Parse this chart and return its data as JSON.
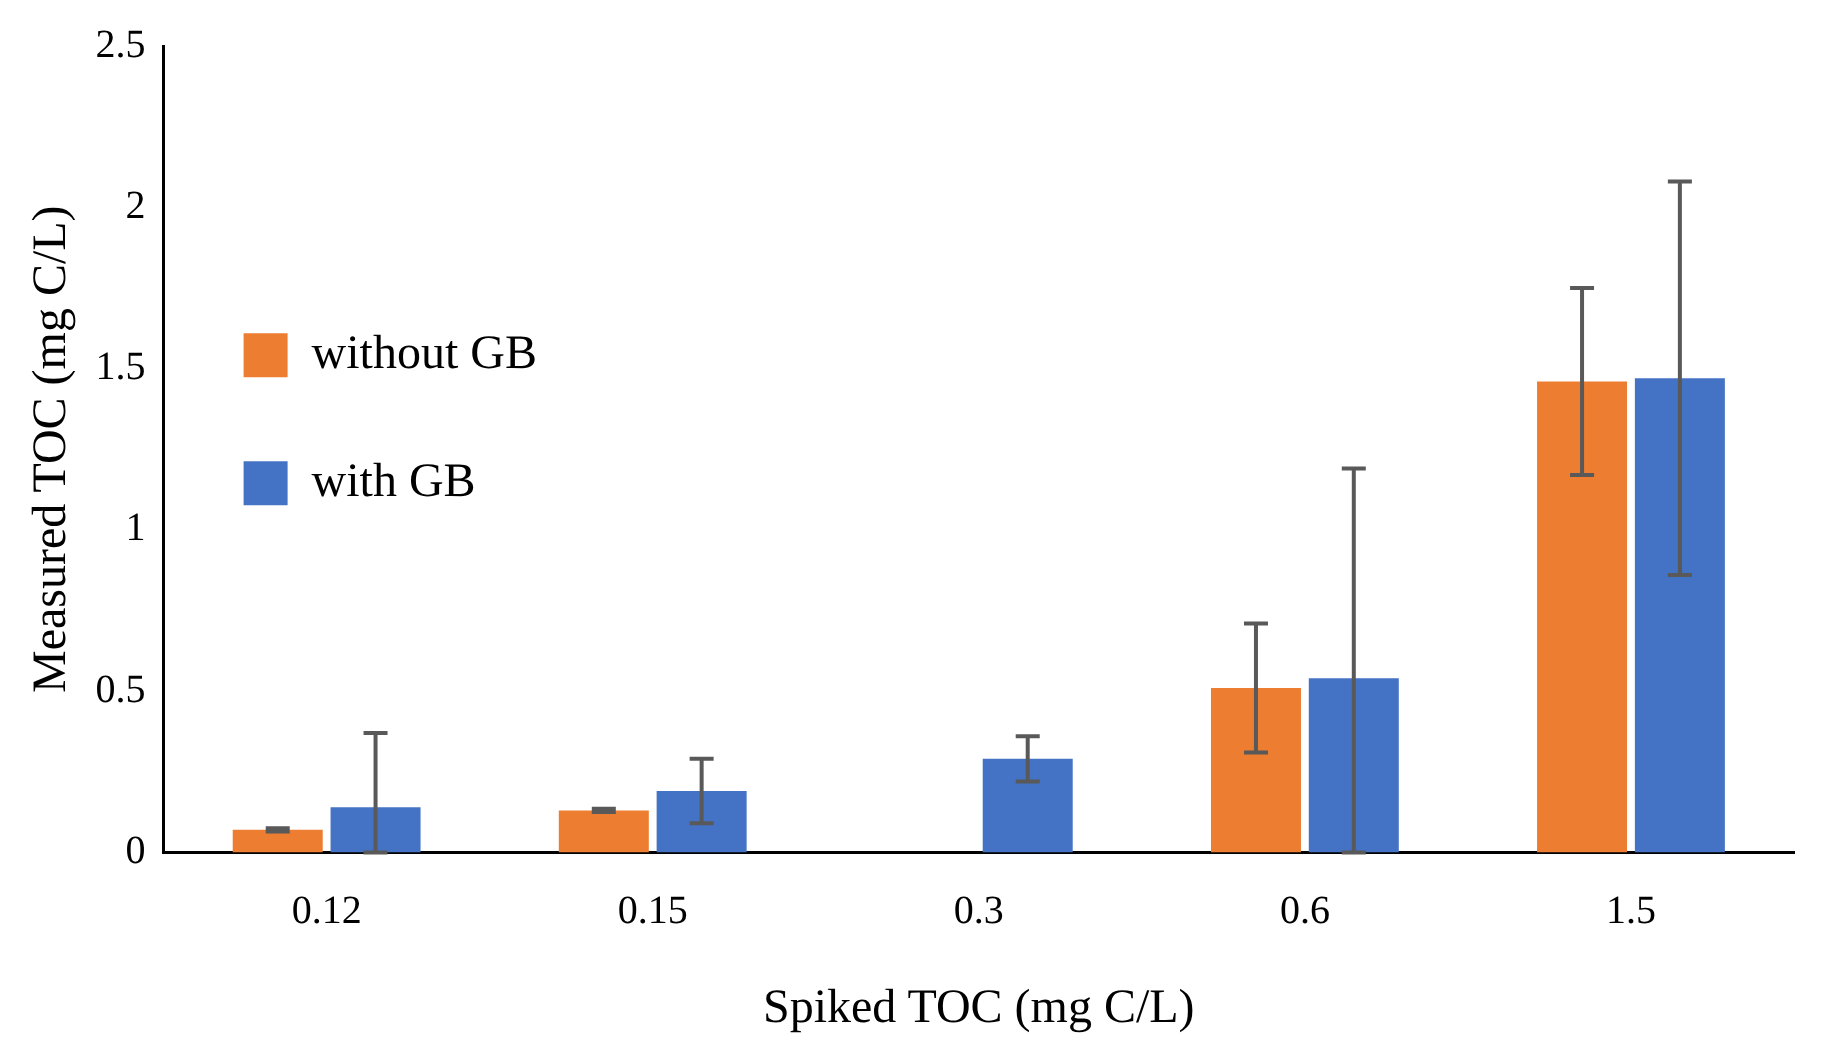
{
  "chart_data": {
    "type": "bar",
    "xlabel": "Spiked TOC (mg C/L)",
    "ylabel": "Measured TOC (mg C/L)",
    "categories": [
      "0.12",
      "0.15",
      "0.3",
      "0.6",
      "1.5"
    ],
    "series": [
      {
        "name": "without GB",
        "color": "#ed7d31",
        "values": [
          0.07,
          0.13,
          null,
          0.51,
          1.46
        ],
        "errors": [
          0.005,
          0.005,
          null,
          0.2,
          0.29
        ]
      },
      {
        "name": "with GB",
        "color": "#4472c4",
        "values": [
          0.14,
          0.19,
          0.29,
          0.54,
          1.47
        ],
        "errors": [
          [
            0,
            0.37
          ],
          0.1,
          0.07,
          [
            0,
            1.19
          ],
          0.61
        ]
      }
    ],
    "ylim": [
      0,
      2.5
    ],
    "yticks": [
      0,
      0.5,
      1,
      1.5,
      2,
      2.5
    ],
    "grid": false,
    "legend": "top"
  }
}
